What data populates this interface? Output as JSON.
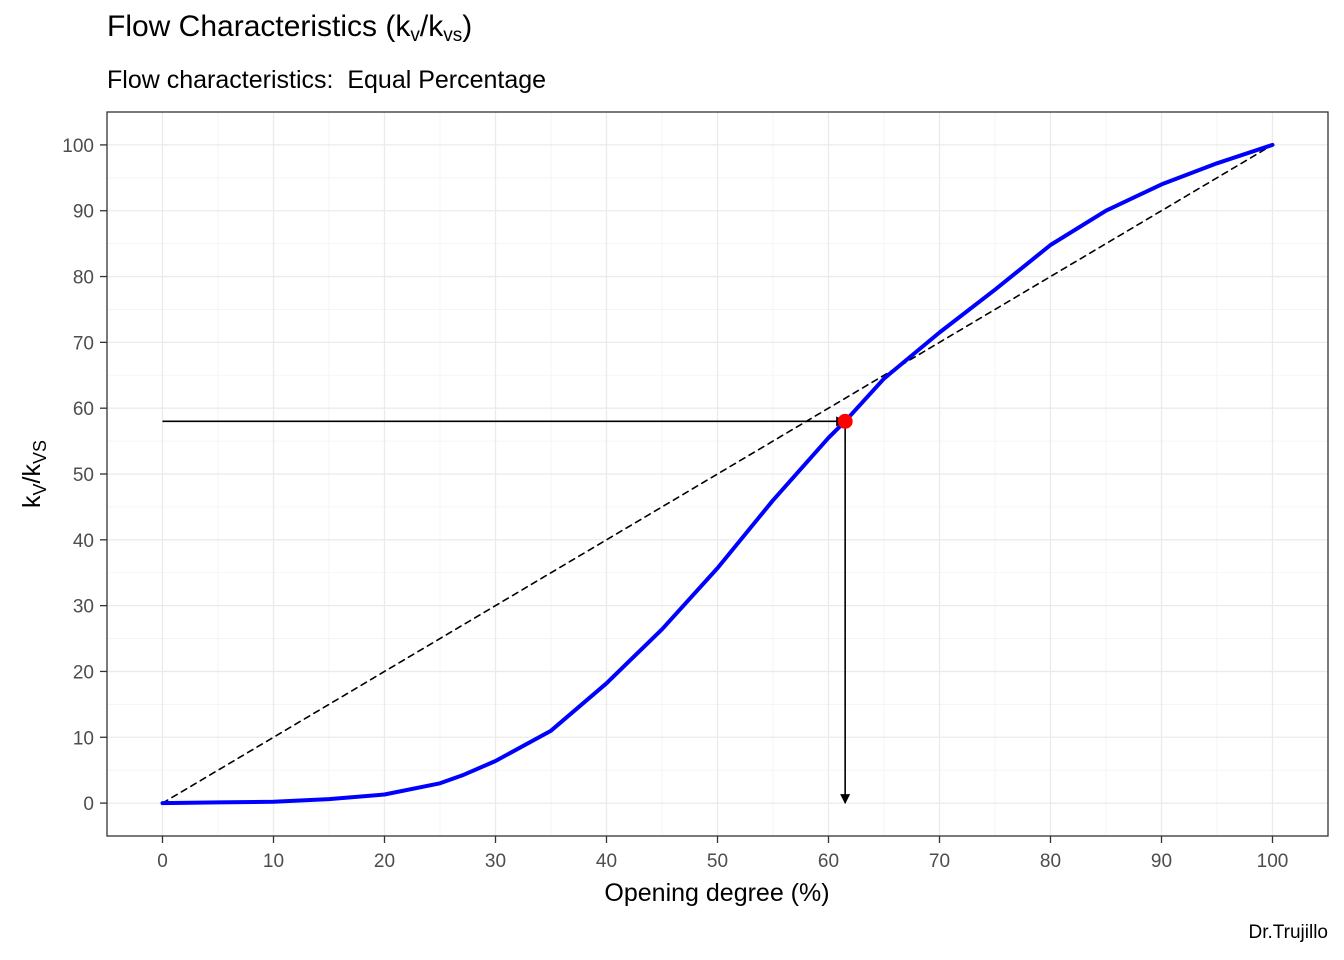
{
  "chart_data": {
    "type": "line",
    "title": "Flow Characteristics (k",
    "title_sub1": "v",
    "title_mid": "/k",
    "title_sub2": "vs",
    "title_end": ")",
    "subtitle": "Flow characteristics:  Equal Percentage",
    "xlabel": "Opening degree (%)",
    "ylabel_main": "k",
    "ylabel_sub1": "V",
    "ylabel_mid": "/k",
    "ylabel_sub2": "VS",
    "caption": "Dr.Trujillo",
    "xlim": [
      -5,
      105
    ],
    "ylim": [
      -5,
      105
    ],
    "x_ticks": [
      0,
      10,
      20,
      30,
      40,
      50,
      60,
      70,
      80,
      90,
      100
    ],
    "y_ticks": [
      0,
      10,
      20,
      30,
      40,
      50,
      60,
      70,
      80,
      90,
      100
    ],
    "grid": true,
    "series": [
      {
        "style": "solid",
        "color": "#0000ff",
        "points": [
          [
            0,
            0
          ],
          [
            5,
            0.1
          ],
          [
            10,
            0.2
          ],
          [
            15,
            0.6
          ],
          [
            20,
            1.3
          ],
          [
            25,
            3
          ],
          [
            27,
            4.2
          ],
          [
            30,
            6.4
          ],
          [
            35,
            11
          ],
          [
            40,
            18.2
          ],
          [
            45,
            26.4
          ],
          [
            50,
            35.7
          ],
          [
            55,
            46
          ],
          [
            60,
            55.5
          ],
          [
            61.5,
            58
          ],
          [
            65,
            64.5
          ],
          [
            70,
            71.5
          ],
          [
            75,
            78
          ],
          [
            80,
            84.8
          ],
          [
            85,
            90
          ],
          [
            90,
            94
          ],
          [
            95,
            97.2
          ],
          [
            100,
            100
          ]
        ]
      },
      {
        "style": "dashed",
        "color": "#000000",
        "points": [
          [
            0,
            0
          ],
          [
            100,
            100
          ]
        ]
      }
    ],
    "highlight_point": {
      "x": 61.5,
      "y": 58,
      "color": "#ff0000"
    },
    "arrows": [
      {
        "from": [
          0,
          58
        ],
        "to": [
          61.5,
          58
        ]
      },
      {
        "from": [
          61.5,
          58
        ],
        "to": [
          61.5,
          0
        ]
      }
    ]
  }
}
